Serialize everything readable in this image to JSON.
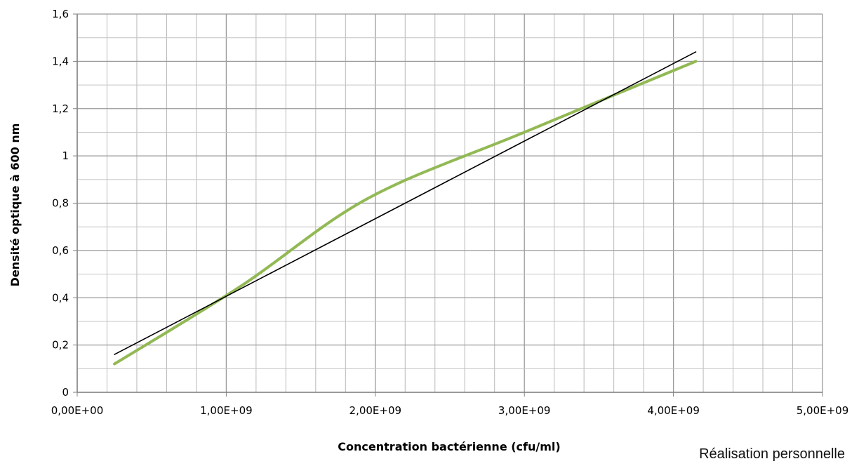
{
  "chart_data": {
    "type": "line",
    "xlabel": "Concentration bactérienne (cfu/ml)",
    "ylabel": "Densité optique à 600 nm",
    "xlim": [
      0,
      5000000000
    ],
    "ylim": [
      0,
      1.6
    ],
    "x_ticks": [
      0,
      1000000000,
      2000000000,
      3000000000,
      4000000000,
      5000000000
    ],
    "x_tick_labels": [
      "0,00E+00",
      "1,00E+09",
      "2,00E+09",
      "3,00E+09",
      "4,00E+09",
      "5,00E+09"
    ],
    "y_ticks": [
      0,
      0.2,
      0.4,
      0.6,
      0.8,
      1,
      1.2,
      1.4,
      1.6
    ],
    "y_tick_labels": [
      "0",
      "0,2",
      "0,4",
      "0,6",
      "0,8",
      "1",
      "1,2",
      "1,4",
      "1,6"
    ],
    "grid": true,
    "x_minor_step": 200000000,
    "y_minor_step": 0.1,
    "series": [
      {
        "kind": "smoothed-data",
        "color": "#92b954",
        "x": [
          250000000,
          1100000000,
          1950000000,
          3000000000,
          4150000000
        ],
        "y": [
          0.12,
          0.45,
          0.82,
          1.1,
          1.4
        ]
      },
      {
        "kind": "linear-trendline",
        "color": "#000000",
        "x": [
          250000000,
          4150000000
        ],
        "y": [
          0.16,
          1.44
        ]
      }
    ]
  },
  "credit": "Réalisation personnelle"
}
